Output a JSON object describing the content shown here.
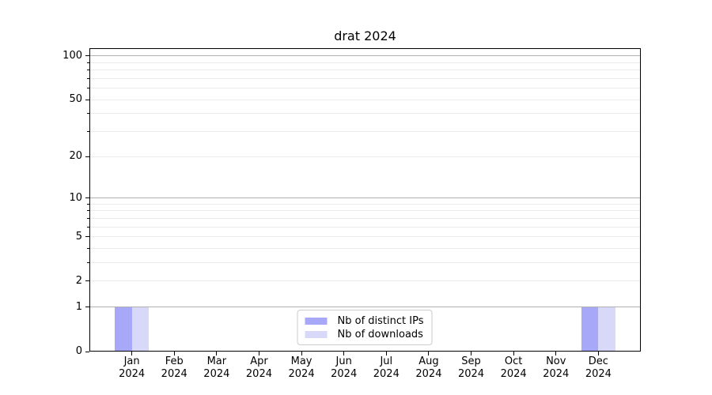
{
  "chart_data": {
    "type": "bar",
    "title": "drat 2024",
    "x_year": "2024",
    "categories": [
      "Jan",
      "Feb",
      "Mar",
      "Apr",
      "May",
      "Jun",
      "Jul",
      "Aug",
      "Sep",
      "Oct",
      "Nov",
      "Dec"
    ],
    "series": [
      {
        "name": "Nb of distinct IPs",
        "color": "#a8a8f8",
        "values": [
          1,
          0,
          0,
          0,
          0,
          0,
          0,
          0,
          0,
          0,
          0,
          1
        ]
      },
      {
        "name": "Nb of downloads",
        "color": "#d8d8f8",
        "values": [
          1,
          0,
          0,
          0,
          0,
          0,
          0,
          0,
          0,
          0,
          0,
          1
        ]
      }
    ],
    "xlabel": "",
    "ylabel": "",
    "y_scale": "log10(1+y)",
    "y_ticks": [
      0,
      1,
      2,
      5,
      10,
      20,
      50,
      100
    ],
    "y_major_gridlines": [
      1,
      10,
      100
    ],
    "y_minor_gridlines": [
      2,
      3,
      4,
      5,
      6,
      7,
      8,
      9,
      20,
      30,
      40,
      50,
      60,
      70,
      80,
      90
    ],
    "ylim": [
      0,
      113
    ],
    "grid": true,
    "legend_position": "bottom-center",
    "colors": {
      "grid_major": "#b0b0b0",
      "grid_minor": "#eaeaea",
      "spine": "#000000",
      "text": "#000000",
      "legend_border": "#cccccc"
    }
  }
}
